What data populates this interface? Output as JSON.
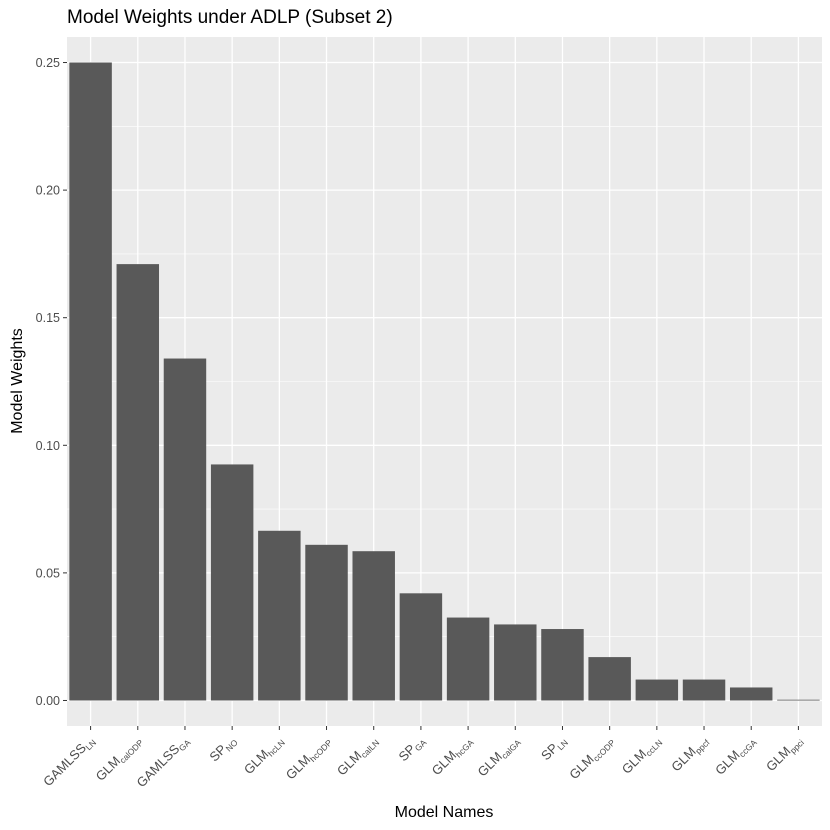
{
  "chart_data": {
    "type": "bar",
    "title": "Model Weights under ADLP (Subset 2)",
    "xlabel": "Model Names",
    "ylabel": "Model Weights",
    "ylim": [
      -0.01,
      0.26
    ],
    "yticks": [
      0.0,
      0.05,
      0.1,
      0.15,
      0.2,
      0.25
    ],
    "ytick_labels": [
      "0.00",
      "0.05",
      "0.10",
      "0.15",
      "0.20",
      "0.25"
    ],
    "grid": true,
    "legend": "none",
    "categories": [
      {
        "base": "GAMLSS",
        "sub": "LN"
      },
      {
        "base": "GLM",
        "sub": "calODP"
      },
      {
        "base": "GAMLSS",
        "sub": "GA"
      },
      {
        "base": "SP",
        "sub": "NO"
      },
      {
        "base": "GLM",
        "sub": "hcLN"
      },
      {
        "base": "GLM",
        "sub": "hcODP"
      },
      {
        "base": "GLM",
        "sub": "calLN"
      },
      {
        "base": "SP",
        "sub": "GA"
      },
      {
        "base": "GLM",
        "sub": "hcGA"
      },
      {
        "base": "GLM",
        "sub": "calGA"
      },
      {
        "base": "SP",
        "sub": "LN"
      },
      {
        "base": "GLM",
        "sub": "ccODP"
      },
      {
        "base": "GLM",
        "sub": "ccLN"
      },
      {
        "base": "GLM",
        "sub": "ppcf"
      },
      {
        "base": "GLM",
        "sub": "ccGA"
      },
      {
        "base": "GLM",
        "sub": "ppci"
      }
    ],
    "values": [
      0.25,
      0.171,
      0.134,
      0.0925,
      0.0665,
      0.061,
      0.0585,
      0.042,
      0.0325,
      0.0298,
      0.028,
      0.017,
      0.0082,
      0.0082,
      0.0051,
      0.0003
    ],
    "colors": {
      "bar": "#595959",
      "panel": "#ebebeb",
      "grid_major": "#ffffff",
      "tick": "#333333"
    }
  }
}
